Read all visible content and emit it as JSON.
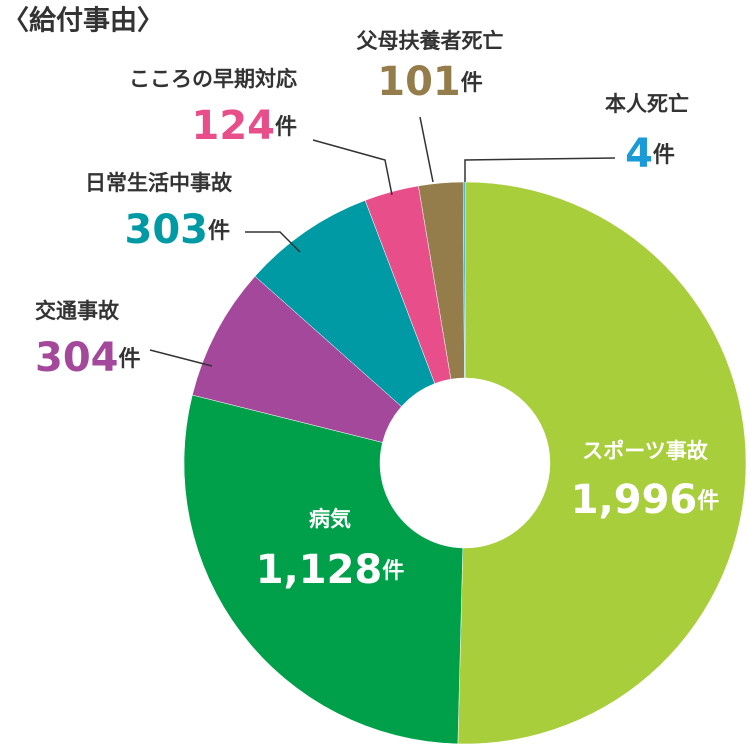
{
  "chart_data": {
    "type": "donut",
    "title": "〈給付事由〉",
    "unit": "件",
    "categories": [
      "スポーツ事故",
      "病気",
      "交通事故",
      "日常生活中事故",
      "こころの早期対応",
      "父母扶養者死亡",
      "本人死亡"
    ],
    "values": [
      1996,
      1128,
      304,
      303,
      124,
      101,
      4
    ],
    "value_labels": [
      "1,996",
      "1,128",
      "304",
      "303",
      "124",
      "101",
      "4"
    ],
    "colors": [
      "#a9ce3b",
      "#00a04a",
      "#a3489a",
      "#009aa5",
      "#e84f8a",
      "#947d4a",
      "#1a9ad6"
    ]
  }
}
